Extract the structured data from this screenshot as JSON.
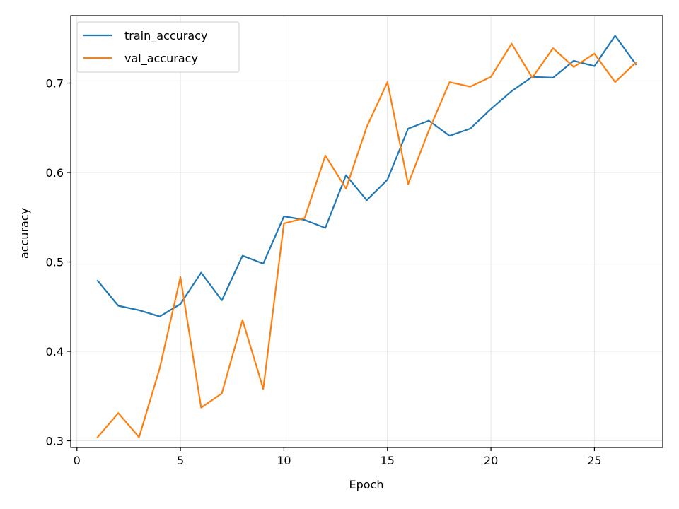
{
  "chart_data": {
    "type": "line",
    "title": "",
    "xlabel": "Epoch",
    "ylabel": "accuracy",
    "xlim": [
      -0.3,
      28.3
    ],
    "ylim": [
      0.2925,
      0.7755
    ],
    "x_ticks": [
      0,
      5,
      10,
      15,
      20,
      25
    ],
    "y_ticks": [
      0.3,
      0.4,
      0.5,
      0.6,
      0.7
    ],
    "grid": true,
    "legend_position": "top-left",
    "x": [
      1,
      2,
      3,
      4,
      5,
      6,
      7,
      8,
      9,
      10,
      11,
      12,
      13,
      14,
      15,
      16,
      17,
      18,
      19,
      20,
      21,
      22,
      23,
      24,
      25,
      26,
      27
    ],
    "series": [
      {
        "name": "train_accuracy",
        "color": "#1f77b4",
        "values": [
          0.479,
          0.451,
          0.446,
          0.439,
          0.453,
          0.488,
          0.457,
          0.507,
          0.498,
          0.551,
          0.547,
          0.538,
          0.597,
          0.569,
          0.592,
          0.649,
          0.658,
          0.641,
          0.649,
          0.671,
          0.691,
          0.707,
          0.706,
          0.725,
          0.719,
          0.753,
          0.721
        ]
      },
      {
        "name": "val_accuracy",
        "color": "#ff7f0e",
        "values": [
          0.304,
          0.331,
          0.304,
          0.381,
          0.483,
          0.337,
          0.353,
          0.435,
          0.358,
          0.543,
          0.549,
          0.619,
          0.582,
          0.651,
          0.701,
          0.587,
          0.647,
          0.701,
          0.696,
          0.707,
          0.744,
          0.706,
          0.739,
          0.718,
          0.733,
          0.701,
          0.723
        ]
      }
    ]
  }
}
